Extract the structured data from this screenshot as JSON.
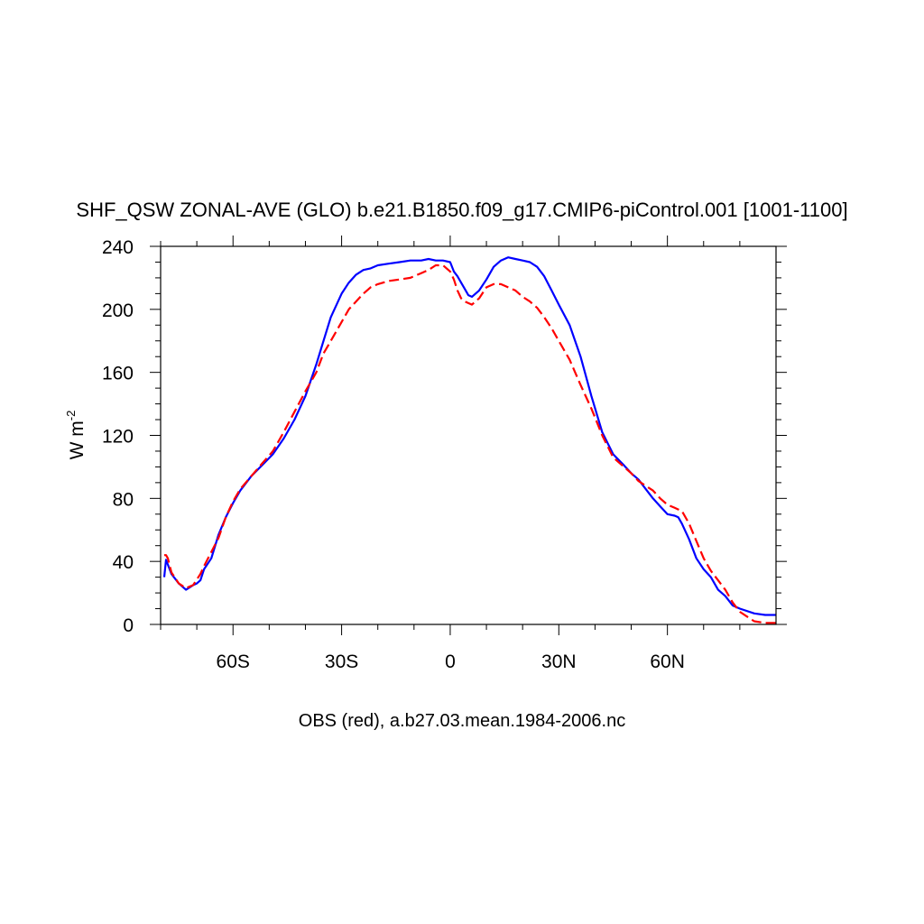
{
  "chart_data": {
    "type": "line",
    "title": "SHF_QSW ZONAL-AVE (GLO) b.e21.B1850.f09_g17.CMIP6-piControl.001 [1001-1100]",
    "xlabel": "OBS (red), a.b27.03.mean.1984-2006.nc",
    "ylabel": "W m",
    "ylabel_superscript": "-2",
    "xlim": [
      -80,
      90
    ],
    "ylim": [
      0,
      240
    ],
    "xticks": [
      {
        "value": -60,
        "label": "60S"
      },
      {
        "value": -30,
        "label": "30S"
      },
      {
        "value": 0,
        "label": "0"
      },
      {
        "value": 30,
        "label": "30N"
      },
      {
        "value": 60,
        "label": "60N"
      }
    ],
    "yticks": [
      {
        "value": 0,
        "label": "0"
      },
      {
        "value": 40,
        "label": "40"
      },
      {
        "value": 80,
        "label": "80"
      },
      {
        "value": 120,
        "label": "120"
      },
      {
        "value": 160,
        "label": "160"
      },
      {
        "value": 200,
        "label": "200"
      },
      {
        "value": 240,
        "label": "240"
      }
    ],
    "series": [
      {
        "name": "b.e21.B1850.f09_g17.CMIP6-piControl.001",
        "color": "#0000ff",
        "style": "solid",
        "x": [
          -79,
          -78.5,
          -77,
          -75,
          -73,
          -71,
          -70,
          -69,
          -68,
          -66,
          -64,
          -62,
          -60,
          -58,
          -55,
          -52,
          -49,
          -46,
          -43,
          -40,
          -37,
          -35,
          -33,
          -30,
          -28,
          -26,
          -24,
          -22,
          -20,
          -17,
          -14,
          -11,
          -8,
          -6,
          -4,
          -2,
          0,
          1,
          2,
          3,
          4,
          5,
          6,
          8,
          10,
          12,
          14,
          16,
          18,
          20,
          22,
          24,
          26,
          28,
          30,
          33,
          36,
          39,
          42,
          45,
          48,
          50,
          52,
          54,
          56,
          58,
          60,
          62,
          63,
          64,
          66,
          68,
          70,
          72,
          74,
          76,
          78,
          80,
          84,
          87,
          90
        ],
        "y": [
          30,
          41,
          32,
          26,
          22,
          25,
          26,
          28,
          35,
          42,
          57,
          68,
          77,
          85,
          94,
          101,
          108,
          118,
          130,
          145,
          165,
          180,
          195,
          210,
          217,
          222,
          225,
          226,
          228,
          229,
          230,
          231,
          231,
          232,
          231,
          231,
          230,
          224,
          221,
          217,
          213,
          209,
          208,
          212,
          219,
          227,
          231,
          233,
          232,
          231,
          230,
          227,
          221,
          212,
          203,
          190,
          170,
          145,
          122,
          108,
          101,
          96,
          92,
          86,
          80,
          75,
          70,
          69,
          68,
          64,
          54,
          42,
          35,
          30,
          22,
          18,
          12,
          10,
          7,
          6,
          6
        ]
      },
      {
        "name": "OBS",
        "color": "#ff0000",
        "style": "dashed",
        "x": [
          -79,
          -78.5,
          -78,
          -77,
          -75,
          -73,
          -71,
          -69,
          -68,
          -66,
          -64,
          -62,
          -60,
          -58,
          -55,
          -52,
          -49,
          -46,
          -43,
          -40,
          -37,
          -35,
          -33,
          -30,
          -28,
          -26,
          -24,
          -22,
          -20,
          -17,
          -14,
          -11,
          -8,
          -6,
          -4,
          -2,
          0,
          1,
          2,
          3,
          4,
          5,
          6,
          8,
          10,
          12,
          14,
          16,
          18,
          20,
          22,
          24,
          26,
          28,
          30,
          33,
          36,
          39,
          42,
          45,
          48,
          50,
          52,
          54,
          56,
          58,
          60,
          62,
          63,
          64,
          66,
          68,
          70,
          72,
          74,
          76,
          78,
          80,
          82,
          84,
          87,
          90
        ],
        "y": [
          44,
          44,
          42,
          33,
          26,
          23,
          25,
          32,
          37,
          46,
          55,
          68,
          78,
          86,
          94,
          102,
          110,
          122,
          135,
          148,
          160,
          172,
          180,
          192,
          200,
          205,
          210,
          214,
          216,
          218,
          219,
          220,
          223,
          225,
          228,
          228,
          224,
          219,
          212,
          207,
          205,
          204,
          203,
          207,
          214,
          216,
          216,
          214,
          212,
          208,
          205,
          201,
          195,
          188,
          180,
          168,
          152,
          137,
          120,
          106,
          100,
          96,
          91,
          88,
          85,
          80,
          76,
          74,
          73,
          72,
          64,
          53,
          42,
          34,
          28,
          22,
          14,
          8,
          5,
          2,
          1,
          1
        ]
      }
    ]
  }
}
